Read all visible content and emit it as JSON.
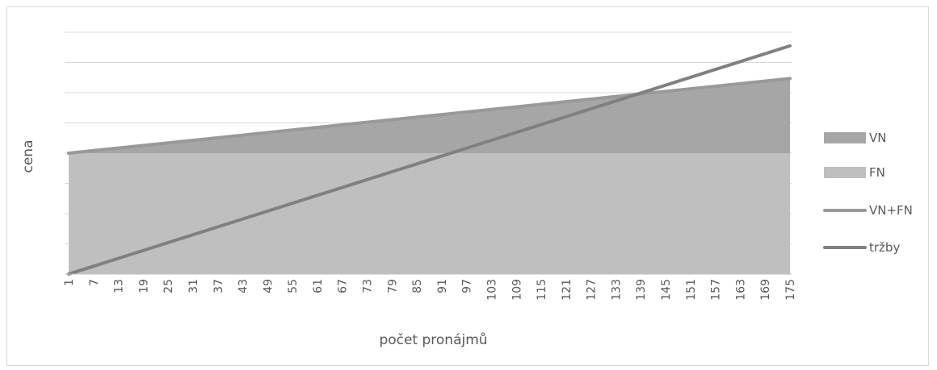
{
  "chart_data": {
    "type": "area",
    "xlabel": "počet pronájmů",
    "ylabel": "cena",
    "x_start": 1,
    "x_end": 175,
    "tick_labels": [
      "1",
      "7",
      "13",
      "19",
      "25",
      "31",
      "37",
      "43",
      "49",
      "55",
      "61",
      "67",
      "73",
      "79",
      "85",
      "91",
      "97",
      "103",
      "109",
      "115",
      "121",
      "127",
      "133",
      "139",
      "145",
      "151",
      "157",
      "163",
      "169",
      "175"
    ],
    "y_tick_labels": [],
    "ylim": [
      0,
      8
    ],
    "grid": true,
    "legend_position": "right",
    "series": [
      {
        "name": "VN",
        "kind": "stacked-area",
        "values_at_ends": [
          0,
          2.47
        ],
        "color": "#a6a6a6"
      },
      {
        "name": "FN",
        "kind": "stacked-area",
        "values_at_ends": [
          4,
          4
        ],
        "color": "#bfbfbf"
      },
      {
        "name": "VN+FN",
        "kind": "line",
        "values_at_ends": [
          4,
          6.47
        ],
        "color": "#999999"
      },
      {
        "name": "tržby",
        "kind": "line",
        "values_at_ends": [
          0,
          7.55
        ],
        "color": "#808080"
      }
    ]
  }
}
